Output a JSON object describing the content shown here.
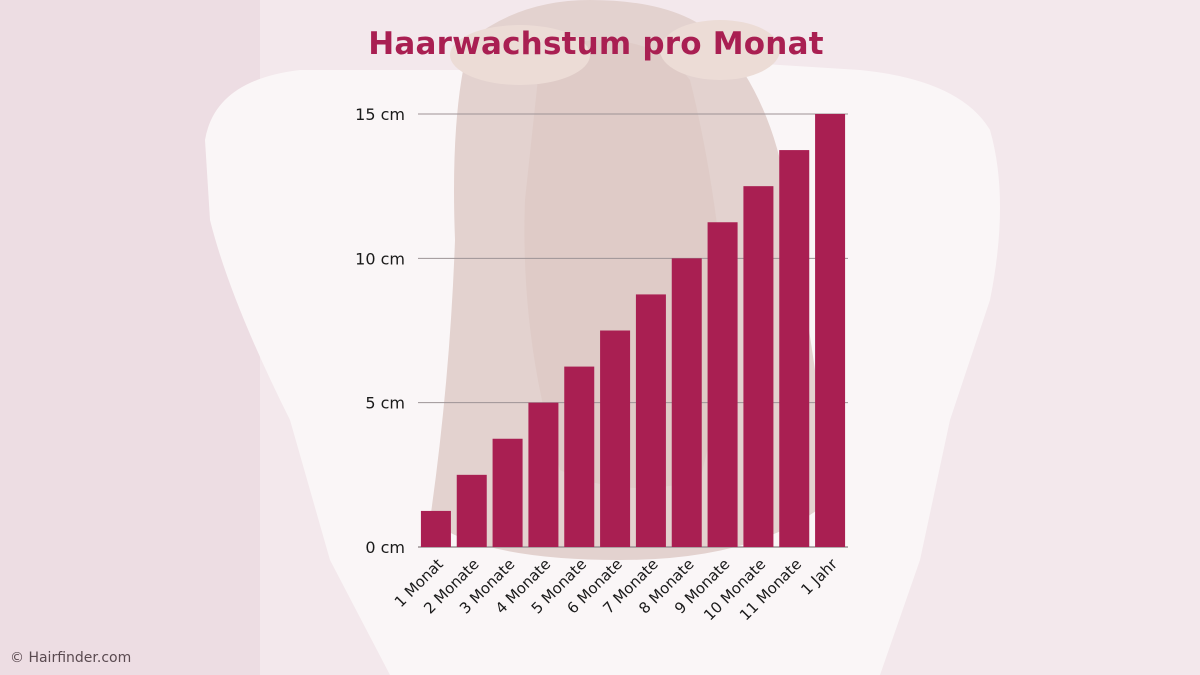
{
  "chart_data": {
    "type": "bar",
    "title": "Haarwachstum pro Monat",
    "xlabel": "",
    "ylabel": "",
    "categories": [
      "1 Monat",
      "2 Monate",
      "3 Monate",
      "4 Monate",
      "5 Monate",
      "6 Monate",
      "7 Monate",
      "8 Monate",
      "9 Monate",
      "10 Monate",
      "11 Monate",
      "1 Jahr"
    ],
    "values": [
      1.25,
      2.5,
      3.75,
      5,
      6.25,
      7.5,
      8.75,
      10,
      11.25,
      12.5,
      13.75,
      15
    ],
    "ylim": [
      0,
      15
    ],
    "yticks": [
      0,
      5,
      10,
      15
    ],
    "ytick_labels": [
      "0 cm",
      "5 cm",
      "10 cm",
      "15 cm"
    ],
    "grid": true,
    "legend": "none"
  },
  "colors": {
    "bar": "#a91f52",
    "title": "#a91f52",
    "gridline": "#9d9396",
    "background": "#f4eaee"
  },
  "footer": {
    "copyright": "© Hairfinder.com"
  }
}
